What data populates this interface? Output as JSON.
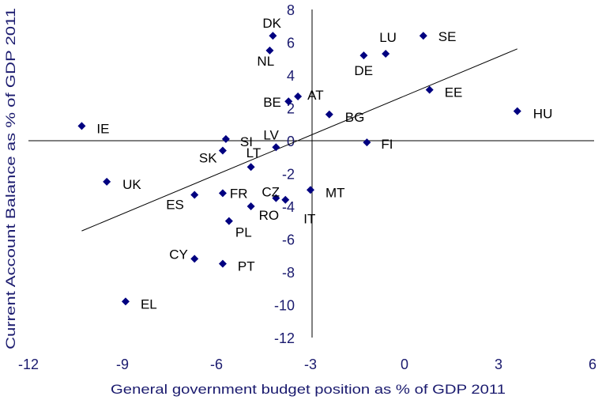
{
  "chart_data": {
    "type": "scatter",
    "title": "",
    "xlabel": "General government  budget position as % of GDP 2011",
    "ylabel": "Current Account Balance as % of GDP 2011",
    "xlim": [
      -12,
      6
    ],
    "ylim": [
      -12,
      8
    ],
    "xticks": [
      "-12",
      "-9",
      "-6",
      "-3",
      "0",
      "3",
      "6"
    ],
    "yticks": [
      "8",
      "6",
      "4",
      "2",
      "0",
      "-2",
      "-4",
      "-6",
      "-8",
      "-10",
      "-12"
    ],
    "axes_cross_at": {
      "x": -3,
      "y": 0
    },
    "grid": false,
    "legend": "none",
    "marker": "diamond",
    "marker_color": "#000080",
    "points": [
      {
        "label": "DK",
        "x": -4.2,
        "y": 6.4
      },
      {
        "label": "NL",
        "x": -4.3,
        "y": 5.5
      },
      {
        "label": "LU",
        "x": -0.6,
        "y": 5.3
      },
      {
        "label": "SE",
        "x": 0.6,
        "y": 6.4
      },
      {
        "label": "DE",
        "x": -1.3,
        "y": 5.2
      },
      {
        "label": "AT",
        "x": -3.4,
        "y": 2.7
      },
      {
        "label": "BE",
        "x": -3.7,
        "y": 2.4
      },
      {
        "label": "BG",
        "x": -2.4,
        "y": 1.6
      },
      {
        "label": "EE",
        "x": 0.8,
        "y": 3.1
      },
      {
        "label": "HU",
        "x": 3.6,
        "y": 1.8
      },
      {
        "label": "IE",
        "x": -10.3,
        "y": 0.9
      },
      {
        "label": "SI",
        "x": -5.7,
        "y": 0.1
      },
      {
        "label": "LV",
        "x": -4.1,
        "y": -0.4
      },
      {
        "label": "FI",
        "x": -1.2,
        "y": -0.1
      },
      {
        "label": "SK",
        "x": -5.8,
        "y": -0.6
      },
      {
        "label": "LT",
        "x": -4.9,
        "y": -1.6
      },
      {
        "label": "UK",
        "x": -9.5,
        "y": -2.5
      },
      {
        "label": "ES",
        "x": -6.7,
        "y": -3.3
      },
      {
        "label": "FR",
        "x": -5.8,
        "y": -3.2
      },
      {
        "label": "CZ",
        "x": -4.1,
        "y": -3.5
      },
      {
        "label": "IT",
        "x": -3.8,
        "y": -3.6
      },
      {
        "label": "MT",
        "x": -3.0,
        "y": -3.0
      },
      {
        "label": "RO",
        "x": -4.9,
        "y": -4.0
      },
      {
        "label": "PL",
        "x": -5.6,
        "y": -4.9
      },
      {
        "label": "CY",
        "x": -6.7,
        "y": -7.2
      },
      {
        "label": "PT",
        "x": -5.8,
        "y": -7.5
      },
      {
        "label": "EL",
        "x": -8.9,
        "y": -9.8
      }
    ],
    "trendline": {
      "x": [
        -10.3,
        3.6
      ],
      "y": [
        -5.5,
        5.6
      ]
    }
  }
}
